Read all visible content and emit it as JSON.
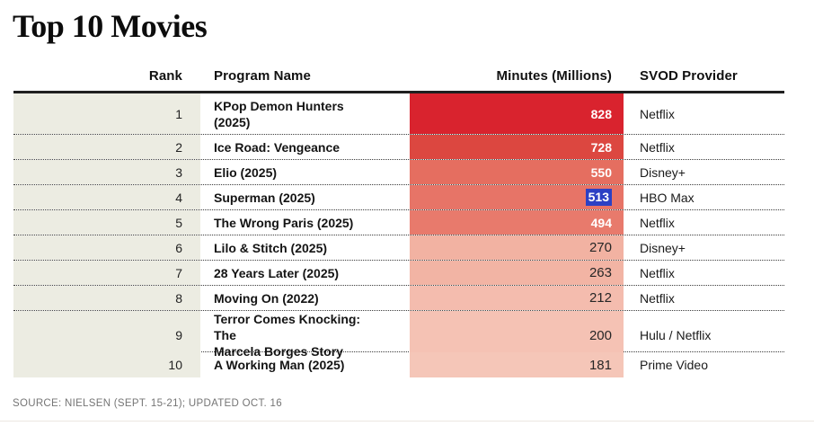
{
  "title": "Top 10 Movies",
  "source": "SOURCE: NIELSEN (SEPT. 15-21); UPDATED OCT. 16",
  "chart_data": {
    "type": "table",
    "title": "Top 10 Movies",
    "columns": [
      "Rank",
      "Program Name",
      "Minutes (Millions)",
      "SVOD Provider"
    ],
    "value_column": "Minutes (Millions)",
    "value_range": [
      181,
      828
    ],
    "heatmap": true,
    "rows": [
      {
        "rank": "1",
        "name_lines": [
          "KPop Demon Hunters",
          "(2025)"
        ],
        "minutes": "828",
        "provider": "Netflix",
        "bar_color": "#d9232e",
        "value_style": "light",
        "selected": false
      },
      {
        "rank": "2",
        "name_lines": [
          "Ice Road: Vengeance"
        ],
        "minutes": "728",
        "provider": "Netflix",
        "bar_color": "#dc4740",
        "value_style": "light",
        "selected": false
      },
      {
        "rank": "3",
        "name_lines": [
          "Elio (2025)"
        ],
        "minutes": "550",
        "provider": "Disney+",
        "bar_color": "#e56e60",
        "value_style": "light",
        "selected": false
      },
      {
        "rank": "4",
        "name_lines": [
          "Superman (2025)"
        ],
        "minutes": "513",
        "provider": "HBO Max",
        "bar_color": "#e77467",
        "value_style": "light",
        "selected": true
      },
      {
        "rank": "5",
        "name_lines": [
          "The Wrong Paris (2025)"
        ],
        "minutes": "494",
        "provider": "Netflix",
        "bar_color": "#e87a6c",
        "value_style": "light",
        "selected": false
      },
      {
        "rank": "6",
        "name_lines": [
          "Lilo & Stitch (2025)"
        ],
        "minutes": "270",
        "provider": "Disney+",
        "bar_color": "#f2b2a2",
        "value_style": "dark",
        "selected": false
      },
      {
        "rank": "7",
        "name_lines": [
          "28 Years Later (2025)"
        ],
        "minutes": "263",
        "provider": "Netflix",
        "bar_color": "#f2b4a4",
        "value_style": "dark",
        "selected": false
      },
      {
        "rank": "8",
        "name_lines": [
          "Moving On (2022)"
        ],
        "minutes": "212",
        "provider": "Netflix",
        "bar_color": "#f4bcae",
        "value_style": "dark",
        "selected": false
      },
      {
        "rank": "9",
        "name_lines": [
          "Terror Comes Knocking: The",
          "Marcela Borges Story"
        ],
        "minutes": "200",
        "provider": "Hulu / Netflix",
        "bar_color": "#f5c2b4",
        "value_style": "dark",
        "selected": false
      },
      {
        "rank": "10",
        "name_lines": [
          "A Working Man (2025)"
        ],
        "minutes": "181",
        "provider": "Prime Video",
        "bar_color": "#f5c6b8",
        "value_style": "dark",
        "selected": false
      }
    ]
  },
  "colors": {
    "rank_column_bg": "#ecece2",
    "header_rule": "#1f1f1f",
    "bar_max": "#d9232e",
    "bar_min": "#f5c6b8",
    "selection_highlight": "#2c40c4",
    "source_text": "#757575"
  }
}
